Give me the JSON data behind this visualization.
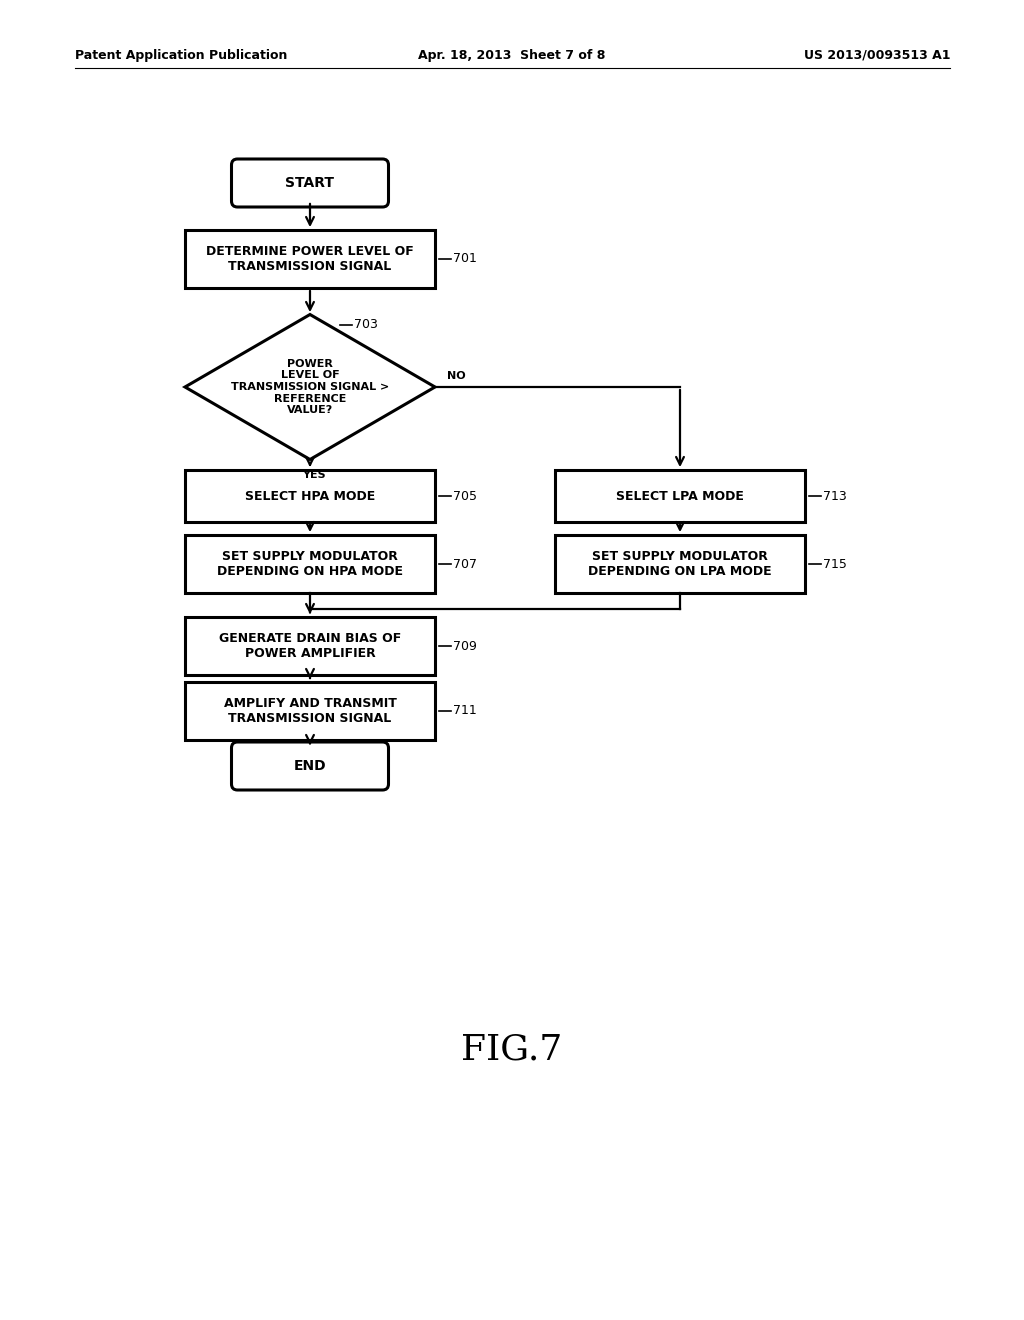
{
  "header_left": "Patent Application Publication",
  "header_mid": "Apr. 18, 2013  Sheet 7 of 8",
  "header_right": "US 2013/0093513 A1",
  "bg_color": "#ffffff",
  "fig_label": "FIG.7",
  "nodes": {
    "start": {
      "label": "START"
    },
    "n701": {
      "label": "DETERMINE POWER LEVEL OF\nTRANSMISSION SIGNAL",
      "tag": "701"
    },
    "n703": {
      "label": "POWER\nLEVEL OF\nTRANSMISSION SIGNAL >\nREFERENCE\nVALUE?",
      "tag": "703"
    },
    "n705": {
      "label": "SELECT HPA MODE",
      "tag": "705"
    },
    "n713": {
      "label": "SELECT LPA MODE",
      "tag": "713"
    },
    "n707": {
      "label": "SET SUPPLY MODULATOR\nDEPENDING ON HPA MODE",
      "tag": "707"
    },
    "n715": {
      "label": "SET SUPPLY MODULATOR\nDEPENDING ON LPA MODE",
      "tag": "715"
    },
    "n709": {
      "label": "GENERATE DRAIN BIAS OF\nPOWER AMPLIFIER",
      "tag": "709"
    },
    "n711": {
      "label": "AMPLIFY AND TRANSMIT\nTRANSMISSION SIGNAL",
      "tag": "711"
    },
    "end": {
      "label": "END"
    }
  }
}
